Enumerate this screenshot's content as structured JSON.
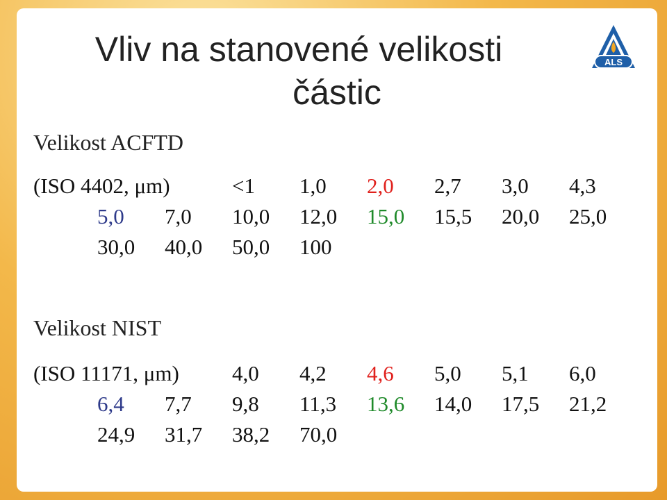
{
  "slide": {
    "title_line1": "Vliv na stanovené velikosti",
    "title_line2": "částic",
    "logo_text": "ALS"
  },
  "acftd": {
    "heading": "Velikost ACFTD",
    "prefix": "(ISO 4402, μm)",
    "rows": [
      [
        {
          "v": "<1",
          "c": "black"
        },
        {
          "v": "1,0",
          "c": "black"
        },
        {
          "v": "2,0",
          "c": "red"
        },
        {
          "v": "2,7",
          "c": "black"
        },
        {
          "v": "3,0",
          "c": "black"
        },
        {
          "v": "4,3",
          "c": "black"
        }
      ],
      [
        {
          "v": "5,0",
          "c": "blue"
        },
        {
          "v": "7,0",
          "c": "black"
        },
        {
          "v": "10,0",
          "c": "black"
        },
        {
          "v": "12,0",
          "c": "black"
        },
        {
          "v": "15,0",
          "c": "green"
        },
        {
          "v": "15,5",
          "c": "black"
        },
        {
          "v": "20,0",
          "c": "black"
        },
        {
          "v": "25,0",
          "c": "black"
        }
      ],
      [
        {
          "v": "30,0",
          "c": "black"
        },
        {
          "v": "40,0",
          "c": "black"
        },
        {
          "v": "50,0",
          "c": "black"
        },
        {
          "v": "100",
          "c": "black"
        }
      ]
    ]
  },
  "nist": {
    "heading": "Velikost NIST",
    "prefix": "(ISO 11171, μm)",
    "rows": [
      [
        {
          "v": "4,0",
          "c": "black"
        },
        {
          "v": "4,2",
          "c": "black"
        },
        {
          "v": "4,6",
          "c": "red"
        },
        {
          "v": "5,0",
          "c": "black"
        },
        {
          "v": "5,1",
          "c": "black"
        },
        {
          "v": "6,0",
          "c": "black"
        }
      ],
      [
        {
          "v": "6,4",
          "c": "blue"
        },
        {
          "v": "7,7",
          "c": "black"
        },
        {
          "v": "9,8",
          "c": "black"
        },
        {
          "v": "11,3",
          "c": "black"
        },
        {
          "v": "13,6",
          "c": "green"
        },
        {
          "v": "14,0",
          "c": "black"
        },
        {
          "v": "17,5",
          "c": "black"
        },
        {
          "v": "21,2",
          "c": "black"
        }
      ],
      [
        {
          "v": "24,9",
          "c": "black"
        },
        {
          "v": "31,7",
          "c": "black"
        },
        {
          "v": "38,2",
          "c": "black"
        },
        {
          "v": "70,0",
          "c": "black"
        }
      ]
    ]
  },
  "colors": {
    "red": "#e0201c",
    "green": "#1f8a2a",
    "blue": "#2e3a8a",
    "black": "#111111"
  }
}
